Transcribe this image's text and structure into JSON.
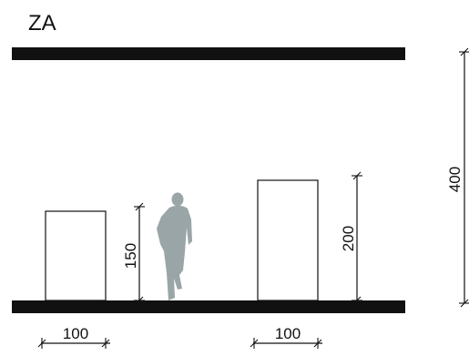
{
  "title": "ZA",
  "dimensions": {
    "left_block_width": "100",
    "left_block_height": "150",
    "right_block_width": "100",
    "right_block_height": "200",
    "total_height": "400"
  },
  "colors": {
    "line": "#111111",
    "slab": "#111111",
    "person": "#9aa5a7",
    "background": "#ffffff"
  },
  "icons": {
    "person": "person-silhouette-icon"
  }
}
